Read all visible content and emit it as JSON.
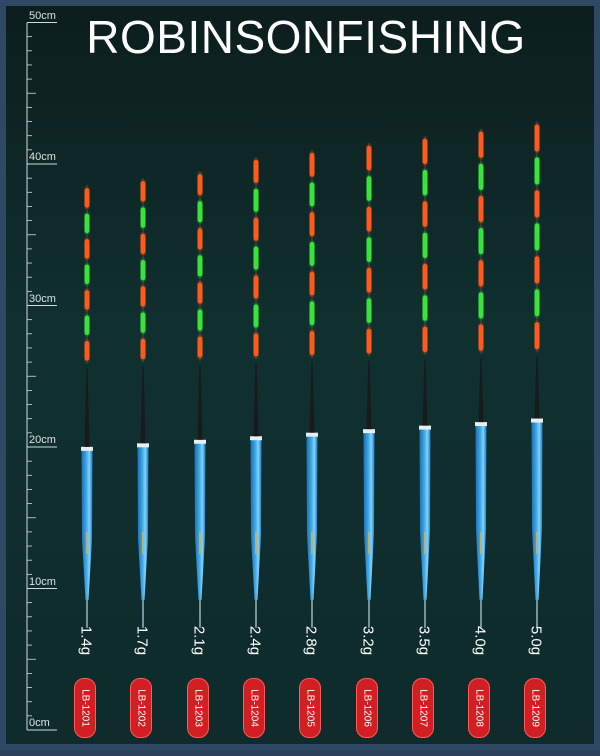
{
  "title": "ROBINSONFISHING",
  "ruler": {
    "ticks": [
      "50cm",
      "40cm",
      "30cm",
      "20cm",
      "10cm",
      "0cm"
    ]
  },
  "floats": [
    {
      "weight": "1.4g",
      "code": "LB-1201",
      "length_cm": 38.5,
      "tip_segments": 7
    },
    {
      "weight": "1.7g",
      "code": "LB-1202",
      "length_cm": 39,
      "tip_segments": 7
    },
    {
      "weight": "2.1g",
      "code": "LB-1203",
      "length_cm": 39.5,
      "tip_segments": 7
    },
    {
      "weight": "2.4g",
      "code": "LB-1204",
      "length_cm": 40.5,
      "tip_segments": 7
    },
    {
      "weight": "2.8g",
      "code": "LB-1205",
      "length_cm": 41,
      "tip_segments": 7
    },
    {
      "weight": "3.2g",
      "code": "LB-1206",
      "length_cm": 41.5,
      "tip_segments": 7
    },
    {
      "weight": "3.5g",
      "code": "LB-1207",
      "length_cm": 42,
      "tip_segments": 7
    },
    {
      "weight": "4.0g",
      "code": "LB-1208",
      "length_cm": 42.5,
      "tip_segments": 7
    },
    {
      "weight": "5.0g",
      "code": "LB-1209",
      "length_cm": 43,
      "tip_segments": 7
    }
  ],
  "colors": {
    "background": "#0f2b2c",
    "frame": "#2f4863",
    "tip_orange": "#ff5a1e",
    "tip_green": "#38e43a",
    "body_blue": "#3fa9e6",
    "badge_red": "#d21f24"
  }
}
